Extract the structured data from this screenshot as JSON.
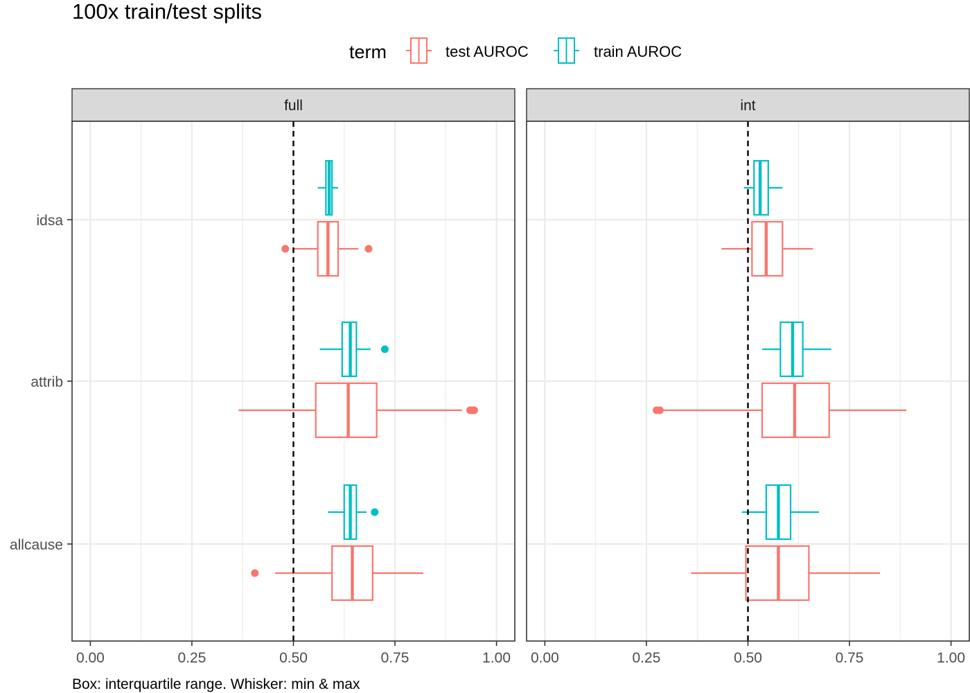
{
  "chart_data": {
    "type": "boxplot",
    "title": "100x train/test splits",
    "caption": "Box: interquartile range. Whisker: min & max",
    "legend": {
      "title": "term",
      "position": "top",
      "entries": [
        {
          "name": "test AUROC",
          "color": "#F8766D"
        },
        {
          "name": "train AUROC",
          "color": "#00BFC4"
        }
      ]
    },
    "categories": [
      "idsa",
      "attrib",
      "allcause"
    ],
    "x_ticks": [
      0.0,
      0.25,
      0.5,
      0.75,
      1.0
    ],
    "x_tick_labels": [
      "0.00",
      "0.25",
      "0.50",
      "0.75",
      "1.00"
    ],
    "xlim": [
      -0.045,
      1.045
    ],
    "reference_line": {
      "x": 0.5,
      "style": "dashed"
    },
    "grid": true,
    "facets": [
      {
        "label": "full",
        "boxes": [
          {
            "category": "idsa",
            "term": "train AUROC",
            "whisker_low": 0.56,
            "q1": 0.58,
            "median": 0.588,
            "q3": 0.595,
            "whisker_high": 0.61,
            "outliers": []
          },
          {
            "category": "idsa",
            "term": "test AUROC",
            "whisker_low": 0.5,
            "q1": 0.56,
            "median": 0.585,
            "q3": 0.61,
            "whisker_high": 0.66,
            "outliers": [
              0.48,
              0.685
            ]
          },
          {
            "category": "attrib",
            "term": "train AUROC",
            "whisker_low": 0.565,
            "q1": 0.62,
            "median": 0.64,
            "q3": 0.655,
            "whisker_high": 0.69,
            "outliers": [
              0.725
            ]
          },
          {
            "category": "attrib",
            "term": "test AUROC",
            "whisker_low": 0.365,
            "q1": 0.555,
            "median": 0.635,
            "q3": 0.705,
            "whisker_high": 0.915,
            "outliers": [
              0.935,
              0.94,
              0.945
            ]
          },
          {
            "category": "allcause",
            "term": "train AUROC",
            "whisker_low": 0.585,
            "q1": 0.625,
            "median": 0.64,
            "q3": 0.655,
            "whisker_high": 0.68,
            "outliers": [
              0.7
            ]
          },
          {
            "category": "allcause",
            "term": "test AUROC",
            "whisker_low": 0.455,
            "q1": 0.595,
            "median": 0.645,
            "q3": 0.695,
            "whisker_high": 0.82,
            "outliers": [
              0.405
            ]
          }
        ]
      },
      {
        "label": "int",
        "boxes": [
          {
            "category": "idsa",
            "term": "train AUROC",
            "whisker_low": 0.49,
            "q1": 0.515,
            "median": 0.53,
            "q3": 0.55,
            "whisker_high": 0.585,
            "outliers": []
          },
          {
            "category": "idsa",
            "term": "test AUROC",
            "whisker_low": 0.435,
            "q1": 0.51,
            "median": 0.545,
            "q3": 0.585,
            "whisker_high": 0.66,
            "outliers": []
          },
          {
            "category": "attrib",
            "term": "train AUROC",
            "whisker_low": 0.535,
            "q1": 0.58,
            "median": 0.61,
            "q3": 0.635,
            "whisker_high": 0.705,
            "outliers": []
          },
          {
            "category": "attrib",
            "term": "test AUROC",
            "whisker_low": 0.29,
            "q1": 0.535,
            "median": 0.615,
            "q3": 0.7,
            "whisker_high": 0.89,
            "outliers": [
              0.275,
              0.283
            ]
          },
          {
            "category": "allcause",
            "term": "train AUROC",
            "whisker_low": 0.485,
            "q1": 0.545,
            "median": 0.575,
            "q3": 0.605,
            "whisker_high": 0.675,
            "outliers": []
          },
          {
            "category": "allcause",
            "term": "test AUROC",
            "whisker_low": 0.36,
            "q1": 0.495,
            "median": 0.575,
            "q3": 0.65,
            "whisker_high": 0.825,
            "outliers": []
          }
        ]
      }
    ]
  }
}
